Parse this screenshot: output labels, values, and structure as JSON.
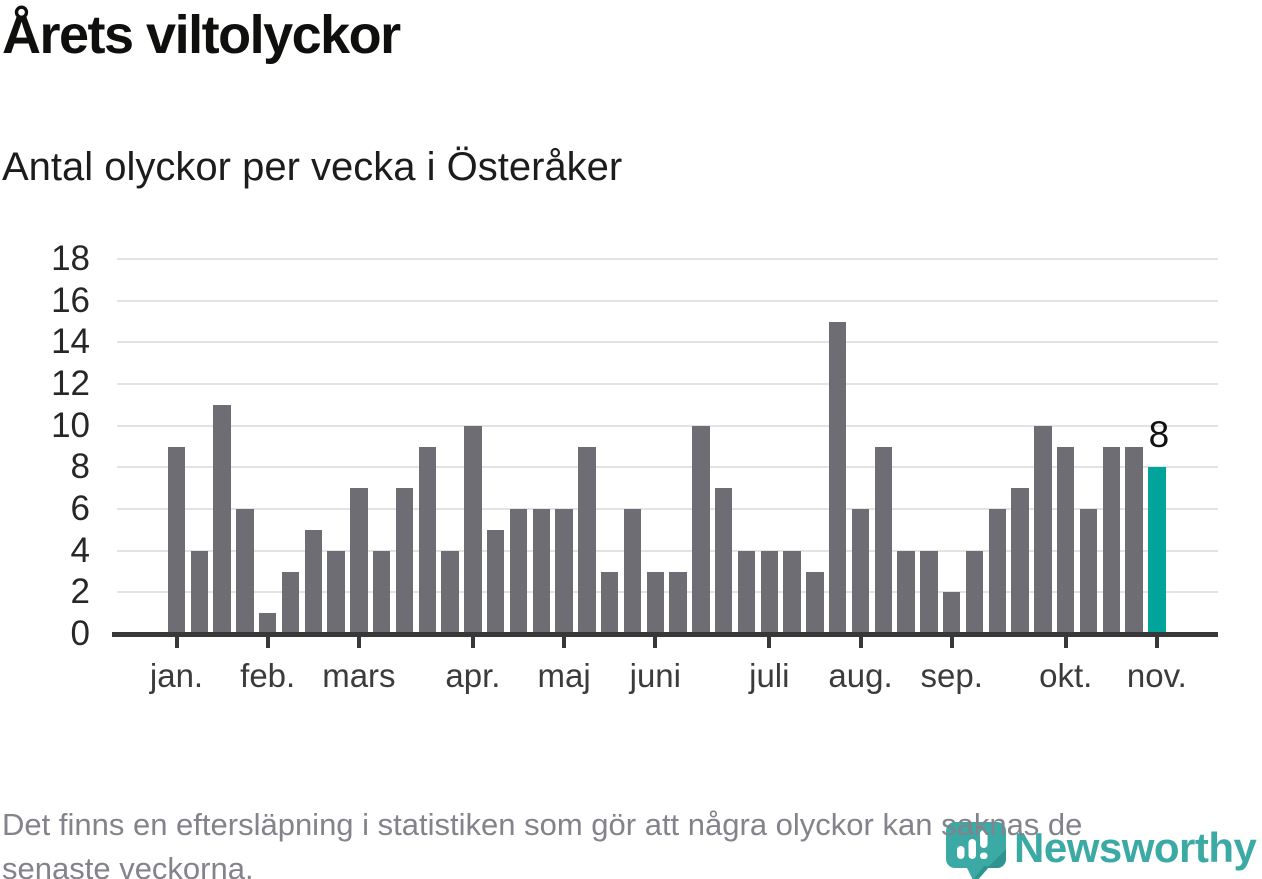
{
  "footnote": {
    "lines": [
      "Det finns en eftersläpning i statistiken som gör att några olyckor kan saknas de",
      "senaste veckorna."
    ]
  },
  "branding": {
    "name": "Newsworthy",
    "icon": "newsworthy-speech-bubble-bar-chart-icon",
    "color": "#3BAAA4"
  },
  "colors": {
    "bar": "#6F6D74",
    "highlight": "#00A49B",
    "axis": "#383838",
    "gridline": "#E3E3E5",
    "footnote_text": "#83838B"
  },
  "chart_data": {
    "type": "bar",
    "title": "Årets viltolyckor",
    "subtitle": "Antal olyckor per vecka i Österåker",
    "x_unit": "week of year",
    "weeks": [
      1,
      2,
      3,
      4,
      5,
      6,
      7,
      8,
      9,
      10,
      11,
      12,
      13,
      14,
      15,
      16,
      17,
      18,
      19,
      20,
      21,
      22,
      23,
      24,
      25,
      26,
      27,
      28,
      29,
      30,
      31,
      32,
      33,
      34,
      35,
      36,
      37,
      38,
      39,
      40,
      41,
      42,
      43,
      44
    ],
    "values": [
      9,
      4,
      11,
      6,
      1,
      3,
      5,
      4,
      7,
      4,
      7,
      9,
      4,
      10,
      5,
      6,
      6,
      6,
      9,
      3,
      6,
      3,
      3,
      10,
      7,
      4,
      4,
      4,
      3,
      15,
      6,
      9,
      4,
      4,
      2,
      4,
      6,
      7,
      10,
      9,
      6,
      9,
      9,
      8
    ],
    "highlight": {
      "week": 44,
      "value": 8,
      "label": "8",
      "color": "#00A49B"
    },
    "ylim": [
      0,
      18
    ],
    "yticks": [
      0,
      2,
      4,
      6,
      8,
      10,
      12,
      14,
      16,
      18
    ],
    "months": [
      {
        "label": "jan.",
        "week": 1
      },
      {
        "label": "feb.",
        "week": 5
      },
      {
        "label": "mars",
        "week": 9
      },
      {
        "label": "apr.",
        "week": 14
      },
      {
        "label": "maj",
        "week": 18
      },
      {
        "label": "juni",
        "week": 22
      },
      {
        "label": "juli",
        "week": 27
      },
      {
        "label": "aug.",
        "week": 31
      },
      {
        "label": "sep.",
        "week": 35
      },
      {
        "label": "okt.",
        "week": 40
      },
      {
        "label": "nov.",
        "week": 44
      }
    ],
    "grid": "horizontal",
    "legend": "none"
  }
}
